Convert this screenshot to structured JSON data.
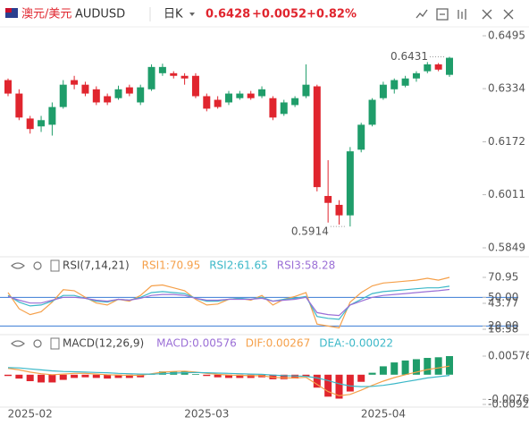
{
  "header": {
    "pair": "澳元/美元",
    "symbol": "AUDUSD",
    "period": "日K",
    "price": "0.6428",
    "change": "+0.0052",
    "change_pct": "+0.82%"
  },
  "chart_data": [
    {
      "type": "candlestick",
      "categories": [
        null,
        null,
        "2025-02",
        null,
        null,
        null,
        null,
        null,
        null,
        null,
        null,
        null,
        null,
        null,
        null,
        null,
        null,
        null,
        "2025-03",
        null,
        null,
        null,
        null,
        null,
        null,
        null,
        null,
        null,
        null,
        null,
        null,
        null,
        null,
        null,
        "2025-04",
        null,
        null,
        null,
        null,
        null,
        null
      ],
      "open": [
        0.636,
        0.6319,
        0.6243,
        0.6219,
        0.6224,
        0.6278,
        0.636,
        0.6346,
        0.6332,
        0.6311,
        0.6305,
        0.6338,
        0.6292,
        0.6332,
        0.6381,
        0.6381,
        0.6373,
        0.6373,
        0.6311,
        0.63,
        0.6292,
        0.6305,
        0.6319,
        0.6311,
        0.6305,
        0.6257,
        0.6284,
        0.6311,
        0.6341,
        0.6007,
        0.598,
        0.5948,
        0.6148,
        0.6224,
        0.6305,
        0.6332,
        0.6343,
        0.6365,
        0.6387,
        0.6408,
        0.6376
      ],
      "high": [
        0.6365,
        0.6332,
        0.6251,
        0.6251,
        0.6292,
        0.636,
        0.6373,
        0.6355,
        0.6341,
        0.6319,
        0.6343,
        0.6346,
        0.6346,
        0.6408,
        0.641,
        0.6387,
        0.6381,
        0.6381,
        0.6319,
        0.6311,
        0.6327,
        0.6327,
        0.6327,
        0.6341,
        0.6311,
        0.63,
        0.6311,
        0.6408,
        0.6346,
        0.6116,
        0.5994,
        0.6156,
        0.623,
        0.6305,
        0.6355,
        0.6365,
        0.6373,
        0.6387,
        0.6415,
        0.6412,
        0.6431
      ],
      "low": [
        0.6311,
        0.6238,
        0.6197,
        0.6202,
        0.6191,
        0.6273,
        0.6332,
        0.6311,
        0.6284,
        0.6284,
        0.63,
        0.6311,
        0.6284,
        0.6327,
        0.6373,
        0.6365,
        0.6346,
        0.6305,
        0.6265,
        0.6273,
        0.6284,
        0.63,
        0.63,
        0.6305,
        0.6238,
        0.6251,
        0.6278,
        0.6305,
        0.6021,
        0.5926,
        0.592,
        0.5914,
        0.614,
        0.6219,
        0.63,
        0.6319,
        0.6338,
        0.6355,
        0.6381,
        0.6387,
        0.637
      ],
      "close": [
        0.6319,
        0.6246,
        0.6211,
        0.6238,
        0.6278,
        0.6346,
        0.6346,
        0.6319,
        0.6292,
        0.6292,
        0.6332,
        0.6319,
        0.6338,
        0.64,
        0.64,
        0.6373,
        0.6365,
        0.6311,
        0.6273,
        0.6278,
        0.6319,
        0.6319,
        0.6305,
        0.6332,
        0.6246,
        0.6292,
        0.6305,
        0.6346,
        0.6034,
        0.5986,
        0.5948,
        0.6143,
        0.6224,
        0.63,
        0.6346,
        0.636,
        0.6365,
        0.6381,
        0.6408,
        0.6392,
        0.6428
      ],
      "up_color": "#1f9d6a",
      "down_color": "#e0252e",
      "ylim": [
        0.5849,
        0.6495
      ],
      "yticks": [
        0.6495,
        0.6334,
        0.6172,
        0.6011,
        0.5849
      ],
      "max_label": "0.6431",
      "min_label": "0.5914"
    },
    {
      "type": "line",
      "title": "RSI(7,14,21)",
      "series": [
        {
          "name": "RSI1:70.95",
          "color": "#f5a04a",
          "values": [
            55,
            38,
            32,
            35,
            45,
            58,
            57,
            50,
            44,
            42,
            48,
            46,
            52,
            62,
            63,
            60,
            57,
            48,
            42,
            43,
            48,
            49,
            47,
            52,
            42,
            48,
            51,
            55,
            22,
            20,
            18,
            45,
            55,
            62,
            65,
            66,
            67,
            68,
            70,
            68,
            70.95
          ]
        },
        {
          "name": "RSI2:61.65",
          "color": "#3cb8c8",
          "values": [
            52,
            45,
            41,
            42,
            46,
            52,
            52,
            49,
            46,
            45,
            48,
            47,
            50,
            55,
            56,
            55,
            54,
            49,
            46,
            46,
            48,
            49,
            48,
            50,
            46,
            48,
            49,
            51,
            30,
            28,
            27,
            42,
            48,
            54,
            56,
            57,
            58,
            59,
            60,
            60,
            61.65
          ]
        },
        {
          "name": "RSI3:58.28",
          "color": "#9b6fd6",
          "values": [
            51,
            47,
            44,
            44,
            47,
            50,
            50,
            49,
            47,
            46,
            48,
            47,
            49,
            52,
            53,
            53,
            52,
            49,
            47,
            47,
            48,
            48,
            48,
            49,
            46,
            47,
            48,
            50,
            34,
            32,
            31,
            42,
            46,
            50,
            52,
            53,
            54,
            55,
            56,
            57,
            58.28
          ]
        }
      ],
      "ylim": [
        16.58,
        70.95
      ],
      "yticks": [
        70.95,
        {
          "value": 50,
          "label": "50.00"
        },
        43.77,
        16.58,
        {
          "value": 20,
          "label": "20.00"
        }
      ],
      "ref_lines": [
        50,
        20
      ],
      "ref_color": "#3a7bd5"
    },
    {
      "type": "combo",
      "title": "MACD(12,26,9)",
      "series": [
        {
          "name": "MACD:0.00576",
          "color": "#9b6fd6",
          "kind": "bar",
          "up_color": "#1f9d6a",
          "down_color": "#e0252e",
          "values": [
            -0.0004,
            -0.0012,
            -0.002,
            -0.0024,
            -0.0024,
            -0.0016,
            -0.001,
            -0.0008,
            -0.001,
            -0.0012,
            -0.001,
            -0.001,
            -0.0008,
            0.0002,
            0.001,
            0.001,
            0.001,
            0.0002,
            -0.0004,
            -0.0008,
            -0.001,
            -0.001,
            -0.001,
            -0.0008,
            -0.0014,
            -0.0014,
            -0.0012,
            -0.0006,
            -0.004,
            -0.0068,
            -0.0074,
            -0.0052,
            -0.0022,
            0.0006,
            0.0026,
            0.0038,
            0.0044,
            0.0048,
            0.0052,
            0.0054,
            0.00576
          ]
        },
        {
          "name": "DIF:0.00267",
          "color": "#f5a04a",
          "kind": "line",
          "values": [
            0.002,
            0.0015,
            0.0008,
            0.0003,
            0.0,
            0.0002,
            0.0004,
            0.0004,
            0.0002,
            0.0,
            -0.0001,
            -0.0002,
            -0.0002,
            0.0003,
            0.0008,
            0.001,
            0.0011,
            0.0008,
            0.0004,
            0.0001,
            -0.0001,
            -0.0002,
            -0.0003,
            -0.0003,
            -0.0008,
            -0.001,
            -0.001,
            -0.0008,
            -0.003,
            -0.0052,
            -0.0065,
            -0.0061,
            -0.0048,
            -0.0033,
            -0.002,
            -0.0009,
            0.0,
            0.0008,
            0.0016,
            0.0021,
            0.00267
          ]
        },
        {
          "name": "DEA:-0.00022",
          "color": "#3cb8c8",
          "kind": "line",
          "values": [
            0.0022,
            0.0021,
            0.0018,
            0.0015,
            0.0012,
            0.001,
            0.0009,
            0.0008,
            0.0007,
            0.0006,
            0.0004,
            0.0003,
            0.0002,
            0.0002,
            0.0003,
            0.0005,
            0.0006,
            0.0007,
            0.0006,
            0.0005,
            0.0004,
            0.0003,
            0.0002,
            0.0001,
            -0.0001,
            -0.0003,
            -0.0004,
            -0.0005,
            -0.001,
            -0.0018,
            -0.0028,
            -0.0035,
            -0.0037,
            -0.0036,
            -0.0033,
            -0.0028,
            -0.0022,
            -0.0016,
            -0.001,
            -0.0006,
            -0.00022
          ]
        }
      ],
      "ylim": [
        -0.0092,
        0.00576
      ],
      "yticks": [
        0.00576,
        -0.0092,
        -0.00761
      ]
    }
  ]
}
